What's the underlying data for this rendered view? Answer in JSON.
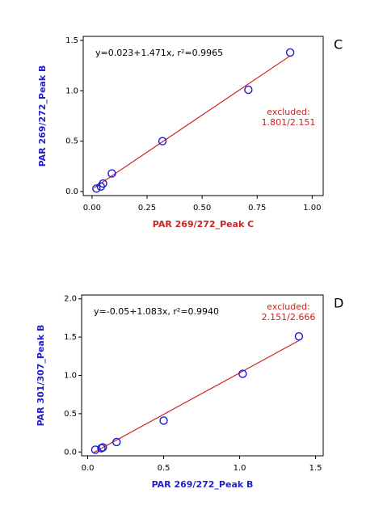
{
  "chart_data": [
    {
      "type": "scatter",
      "panel": "C",
      "equation": "y=0.023+1.471x, r²=0.9965",
      "annotation": [
        "excluded:",
        "1.801/2.151"
      ],
      "xlabel": "PAR 269/272_Peak C",
      "xlabel_color": "#cc2222",
      "ylabel": "PAR 269/272_Peak B",
      "ylabel_color": "#2222cc",
      "xlim": [
        -0.04,
        1.05
      ],
      "ylim": [
        -0.04,
        1.54
      ],
      "xticks": [
        {
          "value": 0,
          "label": "0.00"
        },
        {
          "value": 0.25,
          "label": "0.25"
        },
        {
          "value": 0.5,
          "label": "0.50"
        },
        {
          "value": 0.75,
          "label": "0.75"
        },
        {
          "value": 1,
          "label": "1.00"
        }
      ],
      "yticks": [
        {
          "value": 0,
          "label": "0.0"
        },
        {
          "value": 0.5,
          "label": "0.5"
        },
        {
          "value": 1,
          "label": "1.0"
        },
        {
          "value": 1.5,
          "label": "1.5"
        }
      ],
      "series": [
        {
          "color": "#1a1acc",
          "x": [
            0.02,
            0.04,
            0.05,
            0.09,
            0.32,
            0.71,
            0.9
          ],
          "values": [
            0.03,
            0.05,
            0.08,
            0.18,
            0.5,
            1.01,
            1.38
          ]
        }
      ],
      "fit": {
        "color": "#cc2222",
        "x": [
          0.01,
          0.9
        ],
        "y": [
          0.038,
          1.347
        ]
      }
    },
    {
      "type": "scatter",
      "panel": "D",
      "equation": "y=-0.05+1.083x, r²=0.9940",
      "annotation": [
        "excluded:",
        "2.151/2.666"
      ],
      "xlabel": "PAR 269/272_Peak B",
      "xlabel_color": "#2222cc",
      "ylabel": "PAR 301/307_Peak B",
      "ylabel_color": "#2222cc",
      "xlim": [
        -0.04,
        1.55
      ],
      "ylim": [
        -0.05,
        2.05
      ],
      "xticks": [
        {
          "value": 0,
          "label": "0.0"
        },
        {
          "value": 0.5,
          "label": "0.5"
        },
        {
          "value": 1,
          "label": "1.0"
        },
        {
          "value": 1.5,
          "label": "1.5"
        }
      ],
      "yticks": [
        {
          "value": 0,
          "label": "0.0"
        },
        {
          "value": 0.5,
          "label": "0.5"
        },
        {
          "value": 1,
          "label": "1.0"
        },
        {
          "value": 1.5,
          "label": "1.5"
        },
        {
          "value": 2,
          "label": "2.0"
        }
      ],
      "series": [
        {
          "color": "#1a1acc",
          "x": [
            0.05,
            0.09,
            0.1,
            0.19,
            0.5,
            1.02,
            1.39
          ],
          "values": [
            0.03,
            0.05,
            0.06,
            0.13,
            0.41,
            1.02,
            1.51
          ]
        }
      ],
      "fit": {
        "color": "#cc2222",
        "x": [
          0.04,
          1.4
        ],
        "y": [
          -0.007,
          1.466
        ]
      }
    }
  ]
}
